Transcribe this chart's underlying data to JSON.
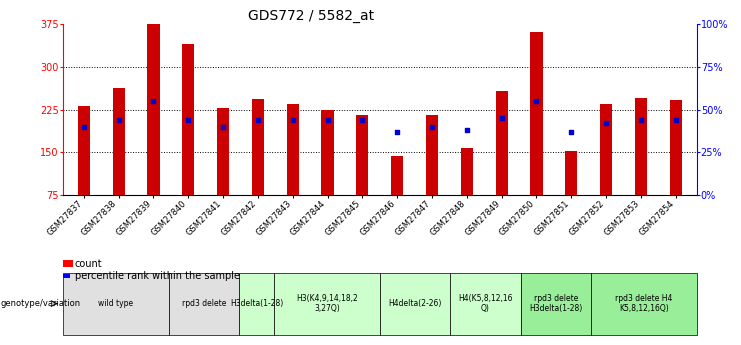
{
  "title": "GDS772 / 5582_at",
  "samples": [
    "GSM27837",
    "GSM27838",
    "GSM27839",
    "GSM27840",
    "GSM27841",
    "GSM27842",
    "GSM27843",
    "GSM27844",
    "GSM27845",
    "GSM27846",
    "GSM27847",
    "GSM27848",
    "GSM27849",
    "GSM27850",
    "GSM27851",
    "GSM27852",
    "GSM27853",
    "GSM27854"
  ],
  "counts": [
    232,
    263,
    375,
    340,
    228,
    243,
    235,
    225,
    215,
    143,
    215,
    158,
    258,
    362,
    152,
    235,
    245,
    242
  ],
  "percentiles": [
    40,
    44,
    55,
    44,
    40,
    44,
    44,
    44,
    44,
    37,
    40,
    38,
    45,
    55,
    37,
    42,
    44,
    44
  ],
  "ymin": 75,
  "ymax": 375,
  "yticks": [
    75,
    150,
    225,
    300,
    375
  ],
  "y2ticks_pct": [
    0,
    25,
    50,
    75,
    100
  ],
  "bar_color": "#cc0000",
  "dot_color": "#0000cc",
  "bg_color": "#ffffff",
  "genotype_groups": [
    {
      "label": "wild type",
      "start": 0,
      "end": 2,
      "color": "#e0e0e0"
    },
    {
      "label": "rpd3 delete",
      "start": 3,
      "end": 4,
      "color": "#e0e0e0"
    },
    {
      "label": "H3delta(1-28)",
      "start": 5,
      "end": 5,
      "color": "#ccffcc"
    },
    {
      "label": "H3(K4,9,14,18,2\n3,27Q)",
      "start": 6,
      "end": 8,
      "color": "#ccffcc"
    },
    {
      "label": "H4delta(2-26)",
      "start": 9,
      "end": 10,
      "color": "#ccffcc"
    },
    {
      "label": "H4(K5,8,12,16\nQ)",
      "start": 11,
      "end": 12,
      "color": "#ccffcc"
    },
    {
      "label": "rpd3 delete\nH3delta(1-28)",
      "start": 13,
      "end": 14,
      "color": "#99ee99"
    },
    {
      "label": "rpd3 delete H4\nK5,8,12,16Q)",
      "start": 15,
      "end": 17,
      "color": "#99ee99"
    }
  ],
  "bar_width": 0.35,
  "title_fontsize": 10,
  "tick_fontsize": 6,
  "label_fontsize": 7
}
